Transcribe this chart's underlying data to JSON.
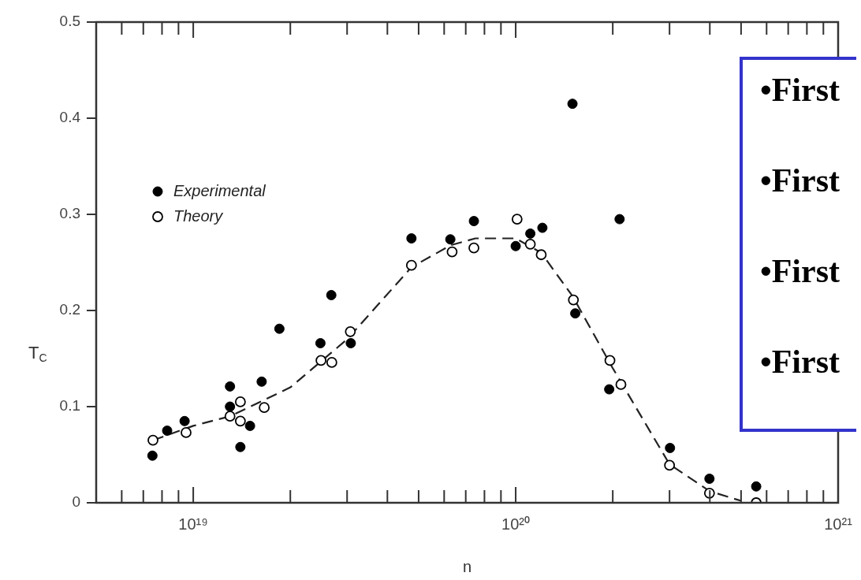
{
  "chart_data": {
    "type": "scatter",
    "xlabel": "n",
    "ylabel": "T$_{C}$",
    "log": "x",
    "legend": "top left",
    "marker": "circle",
    "xlim": [
      5e+18,
      1e+21
    ],
    "ylim": [
      0,
      0.5
    ],
    "xticks": [
      {
        "value": 6e+18,
        "label": null
      },
      {
        "value": 7e+18,
        "label": null
      },
      {
        "value": 8e+18,
        "label": null
      },
      {
        "value": 9e+18,
        "label": null
      },
      {
        "value": 1e+19,
        "label": "10¹⁹"
      },
      {
        "value": 2e+19,
        "label": null
      },
      {
        "value": 3e+19,
        "label": null
      },
      {
        "value": 4e+19,
        "label": null
      },
      {
        "value": 5e+19,
        "label": null
      },
      {
        "value": 6e+19,
        "label": null
      },
      {
        "value": 7e+19,
        "label": null
      },
      {
        "value": 8e+19,
        "label": null
      },
      {
        "value": 9e+19,
        "label": null
      },
      {
        "value": 1e+20,
        "label": "10²⁰"
      },
      {
        "value": 2e+20,
        "label": null
      },
      {
        "value": 3e+20,
        "label": null
      },
      {
        "value": 4e+20,
        "label": null
      },
      {
        "value": 5e+20,
        "label": null
      },
      {
        "value": 6e+20,
        "label": null
      },
      {
        "value": 7e+20,
        "label": null
      },
      {
        "value": 8e+20,
        "label": null
      },
      {
        "value": 9e+20,
        "label": null
      },
      {
        "value": 1e+21,
        "label": "10²¹"
      }
    ],
    "yticks": [
      0,
      0.1,
      0.2,
      0.3,
      0.4,
      0.5
    ],
    "series": [
      {
        "type": "line",
        "line_style": "dashed",
        "marker": "none",
        "color": "#222222",
        "x": [
          7.5e+18,
          1e+19,
          1.3e+19,
          2e+19,
          3e+19,
          4.75e+19,
          6.3e+19,
          7.5e+19,
          1e+20,
          1.2e+20,
          1.5e+20,
          2e+20,
          3e+20,
          4e+20,
          5e+20
        ],
        "values": [
          0.065,
          0.08,
          0.09,
          0.12,
          0.17,
          0.245,
          0.268,
          0.275,
          0.275,
          0.26,
          0.215,
          0.14,
          0.04,
          0.012,
          0.002
        ]
      },
      {
        "name": "Experimental",
        "color": "#000000",
        "x": [
          7.47e+18,
          8.3e+18,
          9.4e+18,
          1.3e+19,
          1.3e+19,
          1.4e+19,
          1.5e+19,
          1.63e+19,
          1.85e+19,
          2.48e+19,
          2.68e+19,
          3.08e+19,
          4.75e+19,
          6.27e+19,
          7.42e+19,
          1e+20,
          1.11e+20,
          1.21e+20,
          1.5e+20,
          2.1e+20,
          1.53e+20,
          1.95e+20,
          3.01e+20,
          3.99e+20,
          5.57e+20
        ],
        "values": [
          0.049,
          0.075,
          0.085,
          0.121,
          0.1,
          0.058,
          0.08,
          0.126,
          0.181,
          0.166,
          0.216,
          0.166,
          0.275,
          0.274,
          0.293,
          0.267,
          0.28,
          0.286,
          0.415,
          0.295,
          0.197,
          0.118,
          0.057,
          0.025,
          0.017
        ]
      },
      {
        "name": "Theory",
        "color": "#000000",
        "x": [
          7.5e+18,
          9.5e+18,
          1.3e+19,
          1.4e+19,
          1.4e+19,
          1.66e+19,
          2.49e+19,
          2.69e+19,
          3.07e+19,
          4.75e+19,
          6.35e+19,
          7.42e+19,
          1.01e+20,
          1.11e+20,
          1.2e+20,
          1.51e+20,
          1.96e+20,
          2.12e+20,
          3e+20,
          3.99e+20,
          5.57e+20
        ],
        "values": [
          0.065,
          0.073,
          0.09,
          0.105,
          0.085,
          0.099,
          0.148,
          0.146,
          0.178,
          0.247,
          0.261,
          0.265,
          0.295,
          0.269,
          0.258,
          0.211,
          0.148,
          0.123,
          0.039,
          0.01,
          0
        ]
      }
    ],
    "annotations": [
      "•First",
      "•First",
      "•First",
      "•First"
    ]
  }
}
